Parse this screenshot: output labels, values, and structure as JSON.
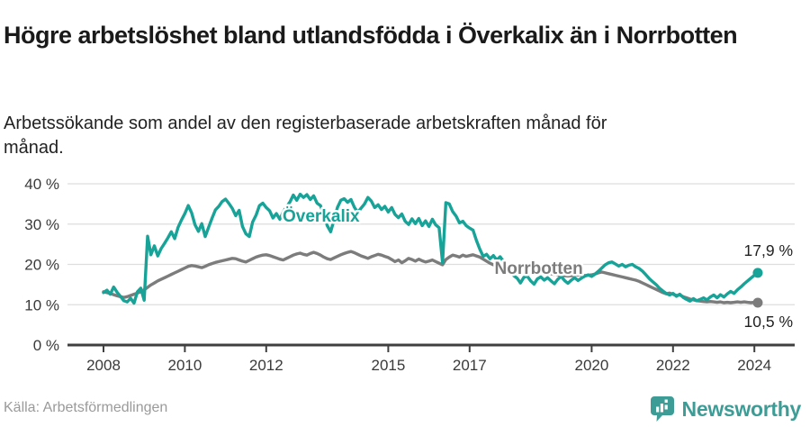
{
  "header": {
    "title": "Högre arbetslöshet bland utlandsfödda i Överkalix än i Norrbotten",
    "subtitle": "Arbetssökande som andel av den registerbaserade arbetskraften månad för månad."
  },
  "footer": {
    "source": "Källa: Arbetsförmedlingen",
    "brand_name": "Newsworthy",
    "brand_icon": "newsworthy-chart-bubble-icon"
  },
  "colors": {
    "accent_teal": "#17A398",
    "line_gray": "#7C7C7C",
    "axis": "#3F3F3F",
    "grid": "#DEDEDE",
    "tick_text": "#3A3A3A",
    "value_text": "#222222",
    "muted_text": "#9A9A9A",
    "brand_teal": "#3E9C96"
  },
  "chart_data": {
    "type": "line",
    "title": "Högre arbetslöshet bland utlandsfödda i Överkalix än i Norrbotten",
    "xlabel": "",
    "ylabel": "",
    "x_start_year": 2008,
    "x_step_months": 1,
    "xlim_years": [
      2007.1,
      2025.0
    ],
    "ylim": [
      0,
      40
    ],
    "grid": true,
    "legend": "inline-labels",
    "y_ticks": [
      {
        "label": "40 %",
        "value": 40
      },
      {
        "label": "30 %",
        "value": 30
      },
      {
        "label": "20 %",
        "value": 20
      },
      {
        "label": "10 %",
        "value": 10
      },
      {
        "label": "0 %",
        "value": 0
      }
    ],
    "x_ticks": [
      {
        "label": "2008",
        "year": 2008
      },
      {
        "label": "2010",
        "year": 2010
      },
      {
        "label": "2012",
        "year": 2012
      },
      {
        "label": "2015",
        "year": 2015
      },
      {
        "label": "2017",
        "year": 2017
      },
      {
        "label": "2020",
        "year": 2020
      },
      {
        "label": "2022",
        "year": 2022
      },
      {
        "label": "2024",
        "year": 2024
      }
    ],
    "series": [
      {
        "name": "Norrbotten",
        "color": "#7C7C7C",
        "end_label": "10,5 %",
        "inline_label": {
          "text": "Norrbotten",
          "year": 2018.7,
          "value": 19.0
        },
        "values": [
          13.2,
          13.0,
          12.8,
          12.5,
          12.2,
          12.0,
          11.8,
          12.0,
          12.3,
          12.6,
          12.9,
          13.2,
          13.7,
          14.3,
          14.9,
          15.4,
          15.9,
          16.3,
          16.7,
          17.1,
          17.5,
          17.9,
          18.3,
          18.7,
          19.1,
          19.5,
          19.7,
          19.6,
          19.4,
          19.2,
          19.5,
          19.9,
          20.2,
          20.5,
          20.7,
          20.9,
          21.1,
          21.3,
          21.5,
          21.4,
          21.1,
          20.8,
          20.6,
          21.0,
          21.4,
          21.8,
          22.1,
          22.3,
          22.4,
          22.2,
          21.9,
          21.6,
          21.3,
          21.1,
          21.5,
          21.9,
          22.3,
          22.6,
          22.8,
          22.5,
          22.3,
          22.7,
          23.0,
          22.7,
          22.3,
          21.8,
          21.4,
          21.2,
          21.6,
          22.0,
          22.4,
          22.7,
          23.0,
          23.2,
          22.9,
          22.5,
          22.1,
          21.8,
          21.5,
          21.9,
          22.2,
          22.5,
          22.3,
          22.0,
          21.7,
          21.2,
          20.7,
          21.1,
          20.4,
          20.9,
          21.5,
          21.2,
          20.8,
          21.3,
          20.9,
          20.6,
          20.8,
          21.1,
          20.7,
          20.3,
          19.9,
          21.2,
          21.8,
          22.3,
          22.1,
          21.8,
          22.3,
          22.0,
          22.2,
          22.4,
          22.1,
          21.8,
          21.3,
          20.8,
          20.3,
          19.9,
          19.6,
          19.3,
          19.0,
          18.8,
          18.6,
          18.4,
          18.2,
          18.0,
          17.9,
          17.8,
          17.7,
          17.8,
          17.9,
          18.0,
          17.9,
          17.8,
          17.7,
          17.5,
          17.4,
          17.3,
          17.2,
          17.1,
          17.2,
          17.3,
          17.4,
          17.3,
          17.2,
          17.3,
          17.4,
          17.6,
          17.9,
          18.1,
          17.9,
          17.7,
          17.5,
          17.3,
          17.1,
          16.9,
          16.7,
          16.5,
          16.3,
          16.1,
          15.8,
          15.4,
          15.0,
          14.6,
          14.2,
          13.8,
          13.4,
          13.0,
          12.7,
          12.9,
          12.6,
          12.3,
          12.4,
          12.0,
          11.7,
          11.4,
          11.2,
          11.0,
          10.9,
          10.8,
          10.7,
          10.8,
          10.7,
          10.6,
          10.7,
          10.5,
          10.6,
          10.5,
          10.6,
          10.7,
          10.6,
          10.7,
          10.6,
          10.5,
          10.6,
          10.5
        ]
      },
      {
        "name": "Överkalix",
        "color": "#17A398",
        "end_label": "17,9 %",
        "inline_label": {
          "text": "Överkalix",
          "year": 2013.35,
          "value": 32.0
        },
        "values": [
          13.0,
          13.6,
          12.6,
          14.4,
          13.1,
          12.1,
          11.0,
          10.7,
          11.6,
          10.4,
          13.2,
          14.1,
          11.1,
          27.0,
          22.4,
          24.6,
          22.1,
          23.9,
          25.2,
          26.6,
          28.1,
          26.4,
          29.2,
          31.0,
          32.6,
          34.6,
          32.8,
          29.8,
          28.2,
          30.1,
          26.9,
          29.2,
          31.4,
          33.5,
          34.4,
          35.6,
          36.2,
          35.1,
          33.9,
          32.1,
          33.4,
          29.4,
          27.6,
          26.9,
          30.5,
          32.2,
          34.6,
          35.2,
          34.1,
          33.3,
          31.5,
          32.6,
          31.2,
          33.0,
          34.3,
          35.5,
          37.2,
          35.9,
          37.4,
          36.6,
          37.3,
          36.1,
          37.0,
          35.2,
          34.6,
          32.3,
          29.6,
          28.1,
          31.0,
          34.1,
          35.9,
          36.3,
          35.4,
          36.1,
          34.2,
          32.9,
          34.0,
          35.0,
          36.6,
          35.7,
          34.1,
          34.8,
          33.6,
          34.4,
          33.0,
          34.1,
          32.4,
          31.6,
          32.5,
          30.7,
          29.9,
          31.3,
          30.1,
          31.4,
          29.6,
          30.8,
          29.4,
          31.2,
          29.8,
          29.1,
          20.5,
          35.3,
          35.0,
          33.1,
          32.0,
          30.3,
          30.7,
          29.6,
          29.0,
          28.5,
          26.0,
          23.8,
          22.0,
          22.5,
          21.4,
          22.2,
          21.1,
          21.9,
          20.7,
          19.6,
          18.3,
          17.2,
          16.6,
          15.4,
          16.8,
          17.1,
          15.9,
          15.1,
          16.4,
          16.9,
          16.1,
          16.7,
          15.9,
          15.2,
          16.3,
          17.0,
          16.0,
          15.3,
          16.1,
          16.7,
          16.0,
          16.6,
          17.1,
          17.4,
          17.0,
          17.6,
          18.3,
          19.1,
          19.9,
          20.4,
          20.6,
          20.1,
          19.6,
          20.0,
          19.4,
          19.8,
          20.0,
          19.4,
          19.0,
          18.3,
          17.4,
          16.5,
          15.7,
          15.0,
          14.1,
          13.4,
          12.8,
          12.4,
          12.8,
          12.1,
          12.6,
          11.8,
          11.3,
          10.9,
          11.5,
          11.0,
          11.3,
          11.7,
          11.2,
          11.9,
          12.4,
          11.7,
          12.5,
          11.9,
          12.7,
          13.3,
          12.8,
          13.7,
          14.4,
          15.2,
          15.9,
          16.6,
          17.3,
          17.9
        ]
      }
    ]
  }
}
